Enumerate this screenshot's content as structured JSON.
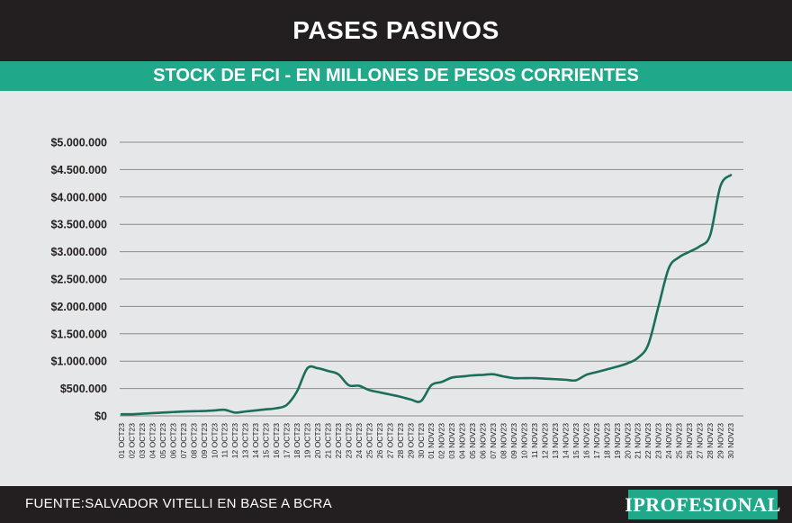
{
  "header": {
    "title": "PASES PASIVOS",
    "subtitle": "STOCK DE FCI - EN MILLONES DE PESOS CORRIENTES"
  },
  "footer": {
    "source": "FUENTE:SALVADOR VITELLI EN BASE A BCRA",
    "logo": "IPROFESIONAL"
  },
  "colors": {
    "line": "#1b6e5a",
    "accent": "#1fa98a",
    "header_bg": "#231f20",
    "plot_bg": "#e6e7e8",
    "grid": "#8a8a8a"
  },
  "chart_data": {
    "type": "line",
    "title": "STOCK DE FCI - EN MILLONES DE PESOS CORRIENTES",
    "xlabel": "",
    "ylabel": "",
    "ylim": [
      0,
      5000000
    ],
    "yticks": [
      0,
      500000,
      1000000,
      1500000,
      2000000,
      2500000,
      3000000,
      3500000,
      4000000,
      4500000,
      5000000
    ],
    "ytick_labels": [
      "$0",
      "$500.000",
      "$1.000.000",
      "$1.500.000",
      "$2.000.000",
      "$2.500.000",
      "$3.000.000",
      "$3.500.000",
      "$4.000.000",
      "$4.500.000",
      "$5.000.000"
    ],
    "grid": true,
    "legend": "none",
    "categories": [
      "01 OCT23",
      "02 OCT23",
      "03 OCT23",
      "04 OCT23",
      "05 OCT23",
      "06 OCT23",
      "07 OCT23",
      "08 OCT23",
      "09 OCT23",
      "10 OCT23",
      "11 OCT23",
      "12 OCT23",
      "13 OCT23",
      "14 OCT23",
      "15 OCT23",
      "16 OCT23",
      "17 OCT23",
      "18 OCT23",
      "19 OCT23",
      "20 OCT23",
      "21 OCT23",
      "22 OCT23",
      "23 OCT23",
      "24 OCT23",
      "25 OCT23",
      "26 OCT23",
      "27 OCT23",
      "28 OCT23",
      "29 OCT23",
      "30 OCT23",
      "01 NOV23",
      "02 NOV23",
      "03 NOV23",
      "04 NOV23",
      "05 NOV23",
      "06 NOV23",
      "07 NOV23",
      "08 NOV23",
      "09 NOV23",
      "10 NOV23",
      "11 NOV23",
      "12 NOV23",
      "13 NOV23",
      "14 NOV23",
      "15 NOV23",
      "16 NOV23",
      "17 NOV23",
      "18 NOV23",
      "19 NOV23",
      "20 NOV23",
      "21 NOV23",
      "22 NOV23",
      "23 NOV23",
      "24 NOV23",
      "25 NOV23",
      "26 NOV23",
      "27 NOV23",
      "28 NOV23",
      "29 NOV23",
      "30 NOV23"
    ],
    "values": [
      30000,
      30000,
      40000,
      50000,
      60000,
      70000,
      80000,
      85000,
      90000,
      100000,
      110000,
      60000,
      80000,
      100000,
      120000,
      140000,
      200000,
      450000,
      870000,
      870000,
      820000,
      760000,
      560000,
      550000,
      470000,
      430000,
      390000,
      350000,
      300000,
      270000,
      560000,
      620000,
      700000,
      720000,
      740000,
      750000,
      760000,
      720000,
      690000,
      690000,
      690000,
      680000,
      670000,
      660000,
      650000,
      750000,
      800000,
      850000,
      900000,
      960000,
      1060000,
      1300000,
      2000000,
      2700000,
      2900000,
      3000000,
      3100000,
      3300000,
      4200000,
      4400000
    ]
  }
}
